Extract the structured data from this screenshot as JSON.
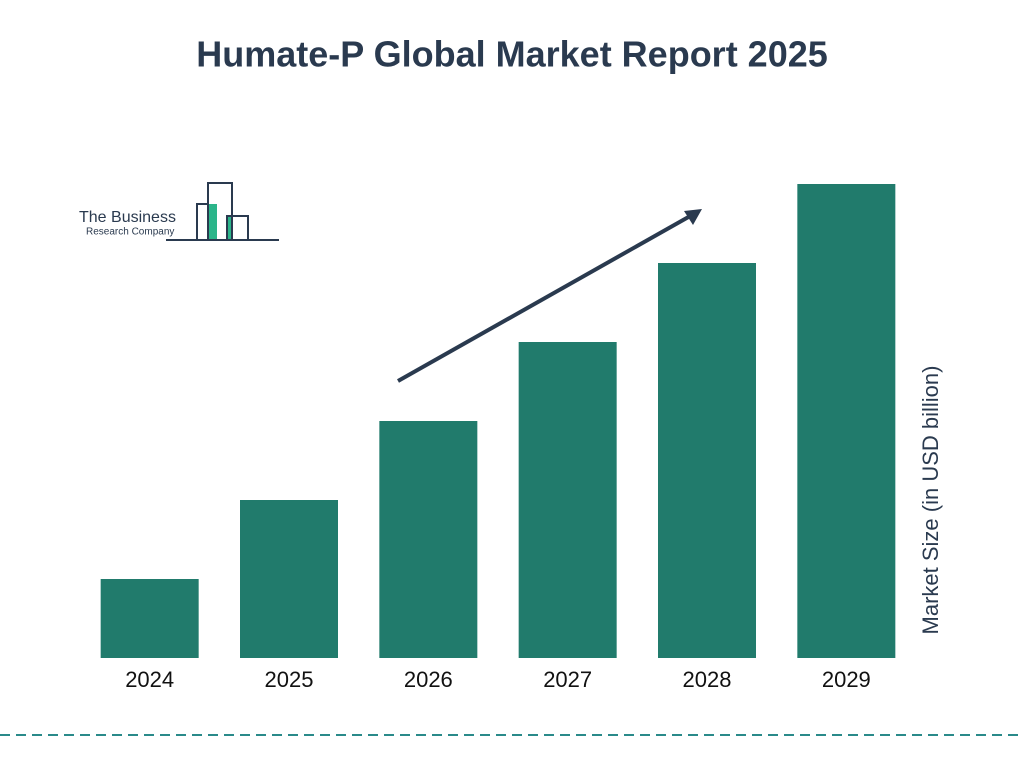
{
  "chart_data": {
    "type": "bar",
    "title": "Humate-P Global Market Report 2025",
    "logo": {
      "line1": "The Business",
      "line2": "Research Company"
    },
    "y_label": "Market Size (in USD billion)",
    "categories": [
      "2024",
      "2025",
      "2026",
      "2027",
      "2028",
      "2029"
    ],
    "values": [
      1,
      2,
      3,
      4,
      5,
      6
    ],
    "color": "#217b6c",
    "ylim": [
      0,
      6
    ]
  }
}
